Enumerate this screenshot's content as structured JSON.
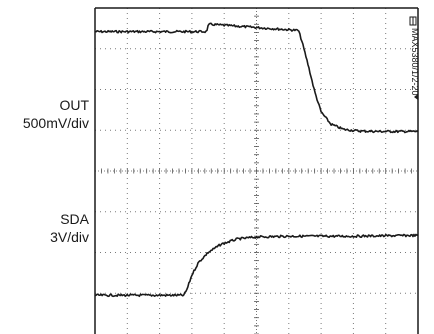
{
  "part_id": "MAX5380/1/2-20",
  "channels": [
    {
      "name": "OUT",
      "scale": "500mV/div"
    },
    {
      "name": "SDA",
      "scale": "3V/div"
    }
  ],
  "chart_data": {
    "type": "line",
    "title": "",
    "xlabel": "",
    "ylabel": "",
    "grid": true,
    "divisions": {
      "x": 10,
      "y": 8
    },
    "xlim": [
      0,
      10
    ],
    "ylim": [
      0,
      8
    ],
    "series": [
      {
        "name": "OUT",
        "color": "#1a1a1a",
        "x": [
          0,
          3.45,
          3.5,
          3.55,
          6.3,
          6.4,
          6.6,
          6.8,
          7.0,
          7.3,
          7.7,
          8.2,
          8.8,
          10
        ],
        "y": [
          7.42,
          7.42,
          7.55,
          7.6,
          7.45,
          7.2,
          6.6,
          5.95,
          5.45,
          5.15,
          5.02,
          4.98,
          4.97,
          4.97
        ]
      },
      {
        "name": "SDA",
        "color": "#1a1a1a",
        "x": [
          0,
          2.75,
          2.85,
          3.0,
          3.2,
          3.5,
          3.9,
          4.4,
          5.0,
          6.0,
          7.0,
          8.0,
          10
        ],
        "y": [
          0.95,
          0.95,
          1.1,
          1.45,
          1.75,
          2.0,
          2.2,
          2.33,
          2.38,
          2.4,
          2.4,
          2.4,
          2.42
        ]
      }
    ]
  }
}
